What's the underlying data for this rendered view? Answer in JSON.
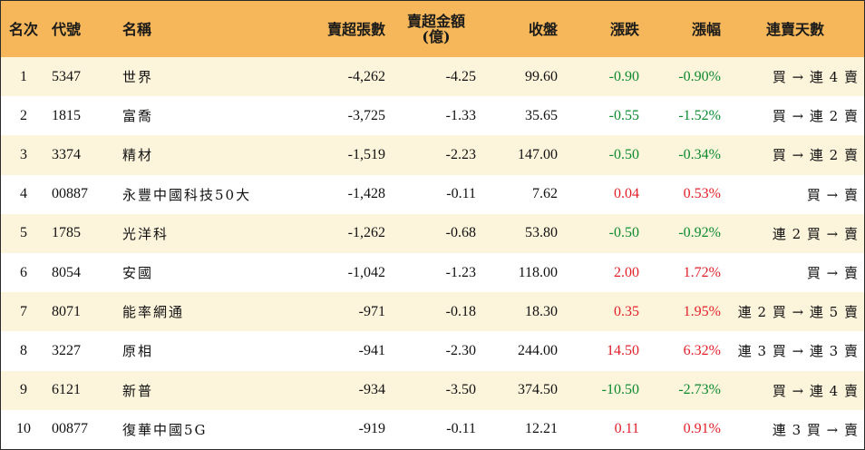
{
  "headers": {
    "rank": "名次",
    "code": "代號",
    "name": "名稱",
    "net_sell_shares": "賣超張數",
    "net_sell_amount_line1": "賣超金額",
    "net_sell_amount_line2": "(億)",
    "close": "收盤",
    "change": "漲跌",
    "change_pct": "漲幅",
    "streak": "連賣天數"
  },
  "colors": {
    "header_bg": "#f5b75a",
    "odd_row_bg": "#fdf4dc",
    "down": "#0b8a2e",
    "up": "#e3202a"
  },
  "rows": [
    {
      "rank": "1",
      "code": "5347",
      "name": "世界",
      "shares": "-4,262",
      "amount": "-4.25",
      "close": "99.60",
      "change": "-0.90",
      "pct": "-0.90%",
      "streak": "買 → 連 4 賣",
      "dir": "neg"
    },
    {
      "rank": "2",
      "code": "1815",
      "name": "富喬",
      "shares": "-3,725",
      "amount": "-1.33",
      "close": "35.65",
      "change": "-0.55",
      "pct": "-1.52%",
      "streak": "買 → 連 2 賣",
      "dir": "neg"
    },
    {
      "rank": "3",
      "code": "3374",
      "name": "精材",
      "shares": "-1,519",
      "amount": "-2.23",
      "close": "147.00",
      "change": "-0.50",
      "pct": "-0.34%",
      "streak": "買 → 連 2 賣",
      "dir": "neg"
    },
    {
      "rank": "4",
      "code": "00887",
      "name": "永豐中國科技50大",
      "shares": "-1,428",
      "amount": "-0.11",
      "close": "7.62",
      "change": "0.04",
      "pct": "0.53%",
      "streak": "買 → 賣",
      "dir": "pos"
    },
    {
      "rank": "5",
      "code": "1785",
      "name": "光洋科",
      "shares": "-1,262",
      "amount": "-0.68",
      "close": "53.80",
      "change": "-0.50",
      "pct": "-0.92%",
      "streak": "連 2 買 → 賣",
      "dir": "neg"
    },
    {
      "rank": "6",
      "code": "8054",
      "name": "安國",
      "shares": "-1,042",
      "amount": "-1.23",
      "close": "118.00",
      "change": "2.00",
      "pct": "1.72%",
      "streak": "買 → 賣",
      "dir": "pos"
    },
    {
      "rank": "7",
      "code": "8071",
      "name": "能率網通",
      "shares": "-971",
      "amount": "-0.18",
      "close": "18.30",
      "change": "0.35",
      "pct": "1.95%",
      "streak": "連 2 買 → 連 5 賣",
      "dir": "pos"
    },
    {
      "rank": "8",
      "code": "3227",
      "name": "原相",
      "shares": "-941",
      "amount": "-2.30",
      "close": "244.00",
      "change": "14.50",
      "pct": "6.32%",
      "streak": "連 3 買 → 連 3 賣",
      "dir": "pos"
    },
    {
      "rank": "9",
      "code": "6121",
      "name": "新普",
      "shares": "-934",
      "amount": "-3.50",
      "close": "374.50",
      "change": "-10.50",
      "pct": "-2.73%",
      "streak": "買 → 連 4 賣",
      "dir": "neg"
    },
    {
      "rank": "10",
      "code": "00877",
      "name": "復華中國5G",
      "shares": "-919",
      "amount": "-0.11",
      "close": "12.21",
      "change": "0.11",
      "pct": "0.91%",
      "streak": "連 3 買 → 賣",
      "dir": "pos"
    }
  ]
}
